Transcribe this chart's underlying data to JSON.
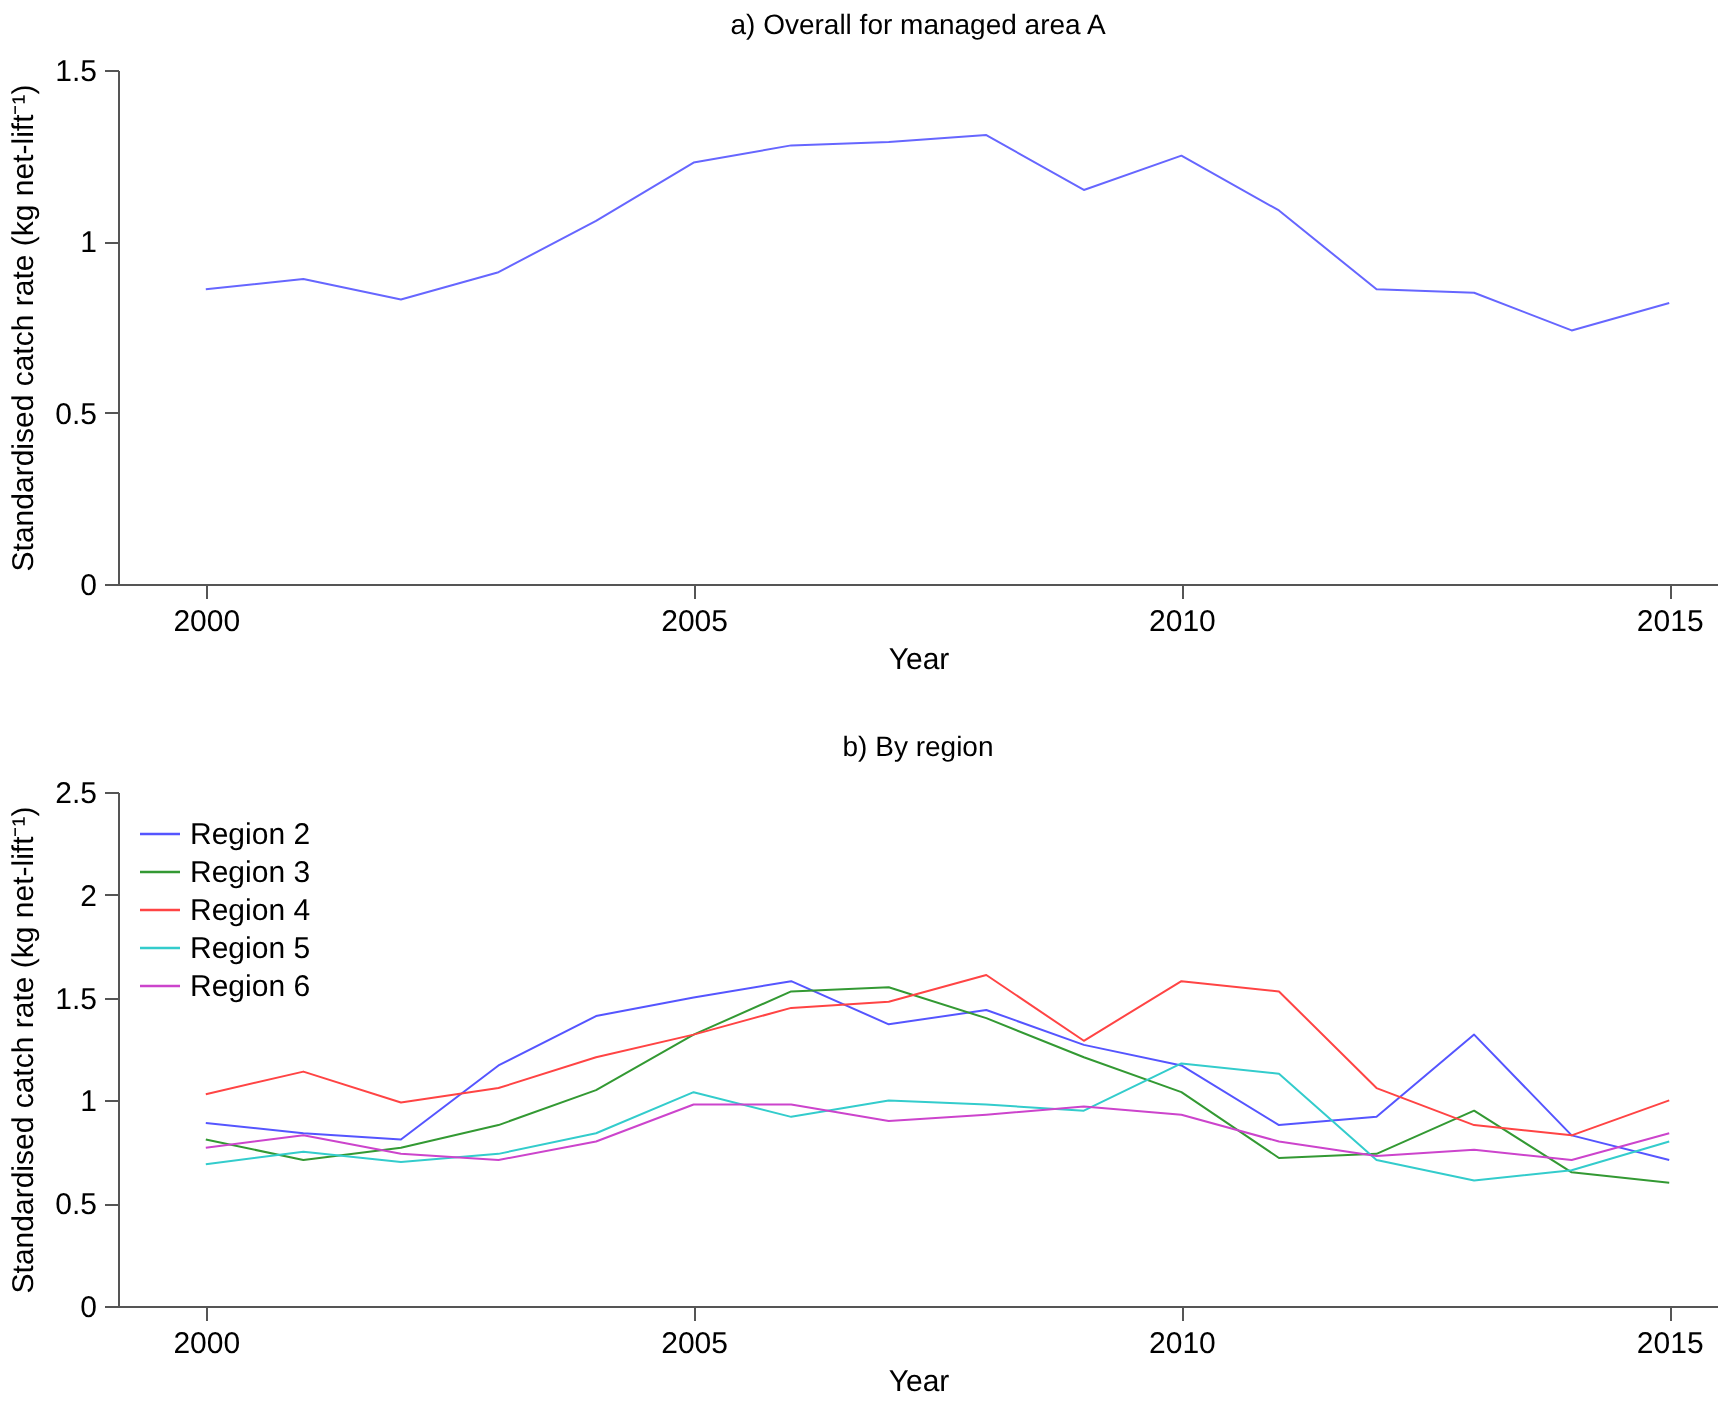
{
  "chart_data": [
    {
      "type": "line",
      "title": "a)  Overall for managed area A",
      "xlabel": "Year",
      "ylabel": "Standardised catch rate (kg net-lift⁻¹)",
      "x": [
        2000,
        2001,
        2002,
        2003,
        2004,
        2005,
        2006,
        2007,
        2008,
        2009,
        2010,
        2011,
        2012,
        2013,
        2014,
        2015
      ],
      "xlim": [
        1999.1,
        2015.5
      ],
      "xticks": [
        2000,
        2005,
        2010,
        2015
      ],
      "ylim": [
        0,
        1.5
      ],
      "yticks": [
        0,
        0.5,
        1,
        1.5
      ],
      "grid": false,
      "line_style": "solid",
      "series": [
        {
          "color": "#6666ff",
          "values": [
            0.86,
            0.89,
            0.83,
            0.91,
            1.06,
            1.23,
            1.28,
            1.29,
            1.31,
            1.15,
            1.25,
            1.09,
            0.86,
            0.85,
            0.74,
            0.82
          ]
        }
      ]
    },
    {
      "type": "line",
      "title": "b)  By region",
      "xlabel": "Year",
      "ylabel": "Standardised catch rate (kg net-lift⁻¹)",
      "x": [
        2000,
        2001,
        2002,
        2003,
        2004,
        2005,
        2006,
        2007,
        2008,
        2009,
        2010,
        2011,
        2012,
        2013,
        2014,
        2015
      ],
      "xlim": [
        1999.1,
        2015.5
      ],
      "xticks": [
        2000,
        2005,
        2010,
        2015
      ],
      "ylim": [
        0,
        2.5
      ],
      "yticks": [
        0,
        0.5,
        1,
        1.5,
        2,
        2.5
      ],
      "grid": false,
      "legend": "top left",
      "line_style": "solid",
      "series": [
        {
          "name": "Region 2",
          "color": "#5555ff",
          "values": [
            0.89,
            0.84,
            0.81,
            1.17,
            1.41,
            1.5,
            1.58,
            1.37,
            1.44,
            1.27,
            1.17,
            0.88,
            0.92,
            1.32,
            0.83,
            0.71
          ]
        },
        {
          "name": "Region 3",
          "color": "#339933",
          "values": [
            0.81,
            0.71,
            0.77,
            0.88,
            1.05,
            1.32,
            1.53,
            1.55,
            1.4,
            1.21,
            1.04,
            0.72,
            0.74,
            0.95,
            0.65,
            0.6
          ]
        },
        {
          "name": "Region 4",
          "color": "#ff4444",
          "values": [
            1.03,
            1.14,
            0.99,
            1.06,
            1.21,
            1.32,
            1.45,
            1.48,
            1.61,
            1.29,
            1.58,
            1.53,
            1.06,
            0.88,
            0.83,
            1.0
          ]
        },
        {
          "name": "Region 5",
          "color": "#33cccc",
          "values": [
            0.69,
            0.75,
            0.7,
            0.74,
            0.84,
            1.04,
            0.92,
            1.0,
            0.98,
            0.95,
            1.18,
            1.13,
            0.71,
            0.61,
            0.66,
            0.8
          ]
        },
        {
          "name": "Region 6",
          "color": "#cc44cc",
          "values": [
            0.77,
            0.83,
            0.74,
            0.71,
            0.8,
            0.98,
            0.98,
            0.9,
            0.93,
            0.97,
            0.93,
            0.8,
            0.73,
            0.76,
            0.71,
            0.84
          ]
        }
      ]
    }
  ]
}
